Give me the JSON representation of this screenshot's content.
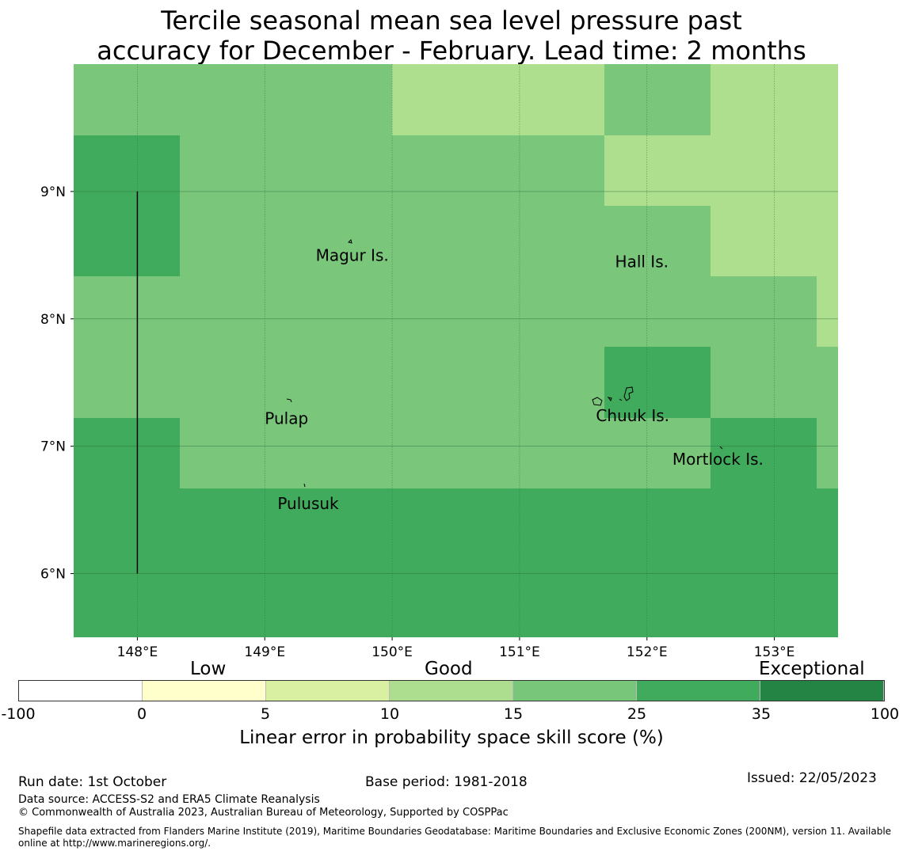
{
  "title_line1": "Tercile seasonal mean sea level pressure past",
  "title_line2": "accuracy for December - February. Lead time: 2 months",
  "map": {
    "lon_labels": [
      "148°E",
      "149°E",
      "150°E",
      "151°E",
      "152°E",
      "153°E"
    ],
    "lon_values": [
      148,
      149,
      150,
      151,
      152,
      153
    ],
    "lat_labels": [
      "9°N",
      "8°N",
      "7°N",
      "6°N"
    ],
    "lat_values": [
      9,
      8,
      7,
      6
    ],
    "lon_range": [
      147.5,
      153.5
    ],
    "lat_range": [
      5.5,
      10.0
    ],
    "cell_colors": [
      [
        "#7ac77b",
        "#7ac77b",
        "#7ac77b",
        "#addf8e",
        "#addf8e",
        "#7ac77b",
        "#addf8e"
      ],
      [
        "#41ab5d",
        "#7ac77b",
        "#7ac77b",
        "#7ac77b",
        "#addf8e",
        "#addf8e",
        "#addf8e"
      ],
      [
        "#41ab5d",
        "#7ac77b",
        "#7ac77b",
        "#7ac77b",
        "#7ac77b",
        "#addf8e",
        "#addf8e"
      ],
      [
        "#7ac77b",
        "#7ac77b",
        "#7ac77b",
        "#7ac77b",
        "#7ac77b",
        "#7ac77b",
        "#addf8e"
      ],
      [
        "#7ac77b",
        "#7ac77b",
        "#7ac77b",
        "#7ac77b",
        "#41ab5d",
        "#7ac77b",
        "#7ac77b"
      ],
      [
        "#41ab5d",
        "#7ac77b",
        "#7ac77b",
        "#7ac77b",
        "#7ac77b",
        "#41ab5d",
        "#7ac77b"
      ],
      [
        "#41ab5d",
        "#41ab5d",
        "#41ab5d",
        "#41ab5d",
        "#41ab5d",
        "#41ab5d",
        "#41ab5d"
      ],
      [
        "#41ab5d",
        "#41ab5d",
        "#41ab5d",
        "#41ab5d",
        "#41ab5d",
        "#41ab5d",
        "#41ab5d"
      ]
    ],
    "places": [
      {
        "name": "Magur Is.",
        "lon": 149.4,
        "lat": 8.5
      },
      {
        "name": "Hall Is.",
        "lon": 151.75,
        "lat": 8.45
      },
      {
        "name": "Pulap",
        "lon": 149.0,
        "lat": 7.22
      },
      {
        "name": "Chuuk Is.",
        "lon": 151.6,
        "lat": 7.24
      },
      {
        "name": "Mortlock Is.",
        "lon": 152.2,
        "lat": 6.9
      },
      {
        "name": "Pulusuk",
        "lon": 149.1,
        "lat": 6.55
      }
    ],
    "boundary_line": {
      "lon": 148.0,
      "lat_from": 6.0,
      "lat_to": 9.0
    }
  },
  "legend": {
    "categories": [
      "Low",
      "Good",
      "Exceptional"
    ],
    "tick_labels": [
      "-100",
      "0",
      "5",
      "10",
      "15",
      "25",
      "35",
      "100"
    ],
    "colors": [
      "#ffffff",
      "#ffffcc",
      "#d9f0a3",
      "#addd8e",
      "#78c679",
      "#41ab5d",
      "#238443"
    ],
    "axis_title": "Linear error in probability space skill score (%)"
  },
  "footer": {
    "run_date": "Run date: 1st October",
    "base_period": "Base period: 1981-2018",
    "issued": "Issued: 22/05/2023",
    "data_source": "Data source: ACCESS-S2 and ERA5 Climate Reanalysis",
    "copyright": "© Commonwealth of Australia 2023, Australian Bureau of Meteorology, Supported by COSPPac",
    "shapefile_line1": "Shapefile data extracted from Flanders Marine Institute (2019), Maritime Boundaries Geodatabase: Maritime Boundaries and Exclusive Economic Zones (200NM), version 11. Available",
    "shapefile_line2": "online at http://www.marineregions.org/."
  }
}
